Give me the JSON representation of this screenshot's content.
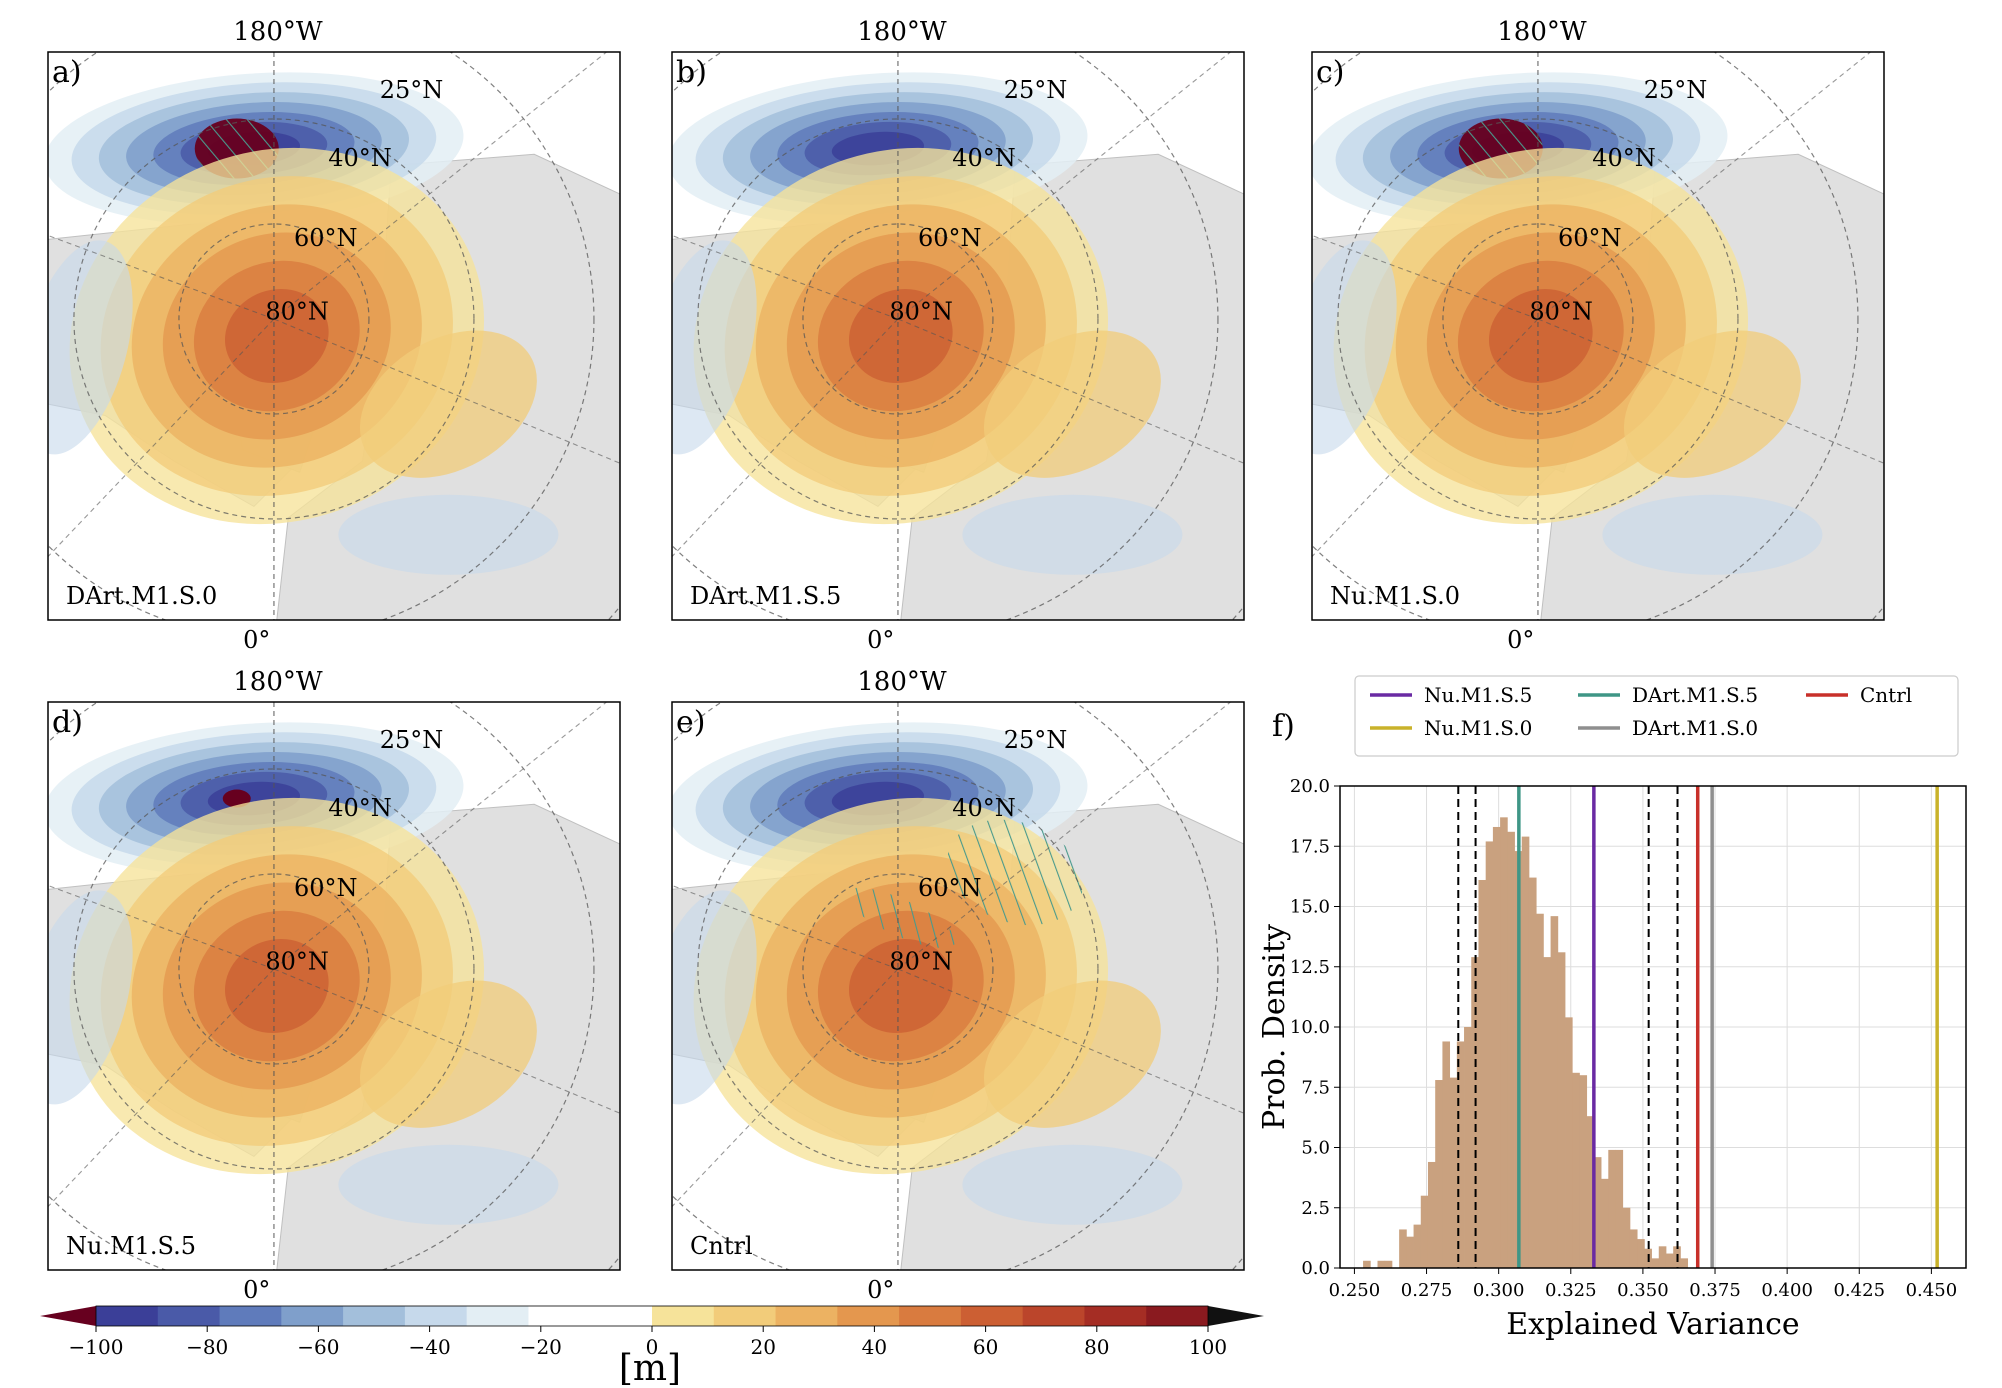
{
  "maps": [
    {
      "panel_label": "a)",
      "model": "DArt.M1.S.0",
      "top_lon": "180°W",
      "bottom_lon": "0°",
      "lat_labels": [
        "25°N",
        "40°N",
        "60°N",
        "80°N"
      ]
    },
    {
      "panel_label": "b)",
      "model": "DArt.M1.S.5",
      "top_lon": "180°W",
      "bottom_lon": "0°",
      "lat_labels": [
        "25°N",
        "40°N",
        "60°N",
        "80°N"
      ]
    },
    {
      "panel_label": "c)",
      "model": "Nu.M1.S.0",
      "top_lon": "180°W",
      "bottom_lon": "0°",
      "lat_labels": [
        "25°N",
        "40°N",
        "60°N",
        "80°N"
      ]
    },
    {
      "panel_label": "d)",
      "model": "Nu.M1.S.5",
      "top_lon": "180°W",
      "bottom_lon": "0°",
      "lat_labels": [
        "25°N",
        "40°N",
        "60°N",
        "80°N"
      ]
    },
    {
      "panel_label": "e)",
      "model": "Cntrl",
      "top_lon": "180°W",
      "bottom_lon": "0°",
      "lat_labels": [
        "25°N",
        "40°N",
        "60°N",
        "80°N"
      ]
    }
  ],
  "colorbar": {
    "ticks": [
      "−100",
      "−80",
      "−60",
      "−40",
      "−20",
      "0",
      "20",
      "40",
      "60",
      "80",
      "100"
    ],
    "unit": "[m]",
    "colors": [
      "#67001f",
      "#3b3f98",
      "#4a5aa8",
      "#5f7bbb",
      "#7f9fcb",
      "#a3bfdb",
      "#c6d9eb",
      "#e3eef4",
      "#ffffff",
      "#ffffff",
      "#f6e39a",
      "#f2cc7a",
      "#ecb262",
      "#e4974e",
      "#d97b3f",
      "#cc5f33",
      "#bb452b",
      "#a52d24",
      "#8a1a1f",
      "#111111"
    ]
  },
  "chart_data": {
    "type": "bar",
    "panel_label": "f)",
    "xlabel": "Explained Variance",
    "ylabel": "Prob. Density",
    "xlim": [
      0.245,
      0.462
    ],
    "ylim": [
      0,
      20
    ],
    "xticks": [
      "0.250",
      "0.275",
      "0.300",
      "0.325",
      "0.350",
      "0.375",
      "0.400",
      "0.425",
      "0.450"
    ],
    "yticks": [
      "0.0",
      "2.5",
      "5.0",
      "7.5",
      "10.0",
      "12.5",
      "15.0",
      "17.5",
      "20.0"
    ],
    "grid": true,
    "bin_width": 0.0025,
    "bins_start": 0.253,
    "density": [
      0.3,
      0,
      0.3,
      0.3,
      0,
      1.6,
      1.3,
      1.8,
      3.0,
      4.4,
      7.8,
      9.4,
      7.9,
      9.4,
      10.0,
      12.9,
      16.1,
      17.7,
      18.3,
      18.7,
      18.1,
      17.3,
      17.9,
      16.2,
      14.7,
      12.9,
      14.6,
      13.1,
      10.4,
      8.1,
      8.0,
      6.3,
      4.6,
      3.7,
      4.9,
      4.9,
      2.5,
      1.6,
      1.2,
      0.8,
      0.4,
      0.9,
      0.6,
      0.9,
      0.4
    ],
    "bar_color": "#c9a17f",
    "ci_lines": [
      0.286,
      0.292,
      0.352,
      0.362
    ],
    "models": [
      {
        "name": "Nu.M1.S.5",
        "value": 0.333,
        "color": "#6a2aa3"
      },
      {
        "name": "Nu.M1.S.0",
        "value": 0.452,
        "color": "#c9b22a"
      },
      {
        "name": "DArt.M1.S.5",
        "value": 0.307,
        "color": "#3f9686"
      },
      {
        "name": "DArt.M1.S.0",
        "value": 0.374,
        "color": "#8f8f8f"
      },
      {
        "name": "Cntrl",
        "value": 0.369,
        "color": "#c8302a"
      }
    ],
    "legend_position": "top"
  }
}
